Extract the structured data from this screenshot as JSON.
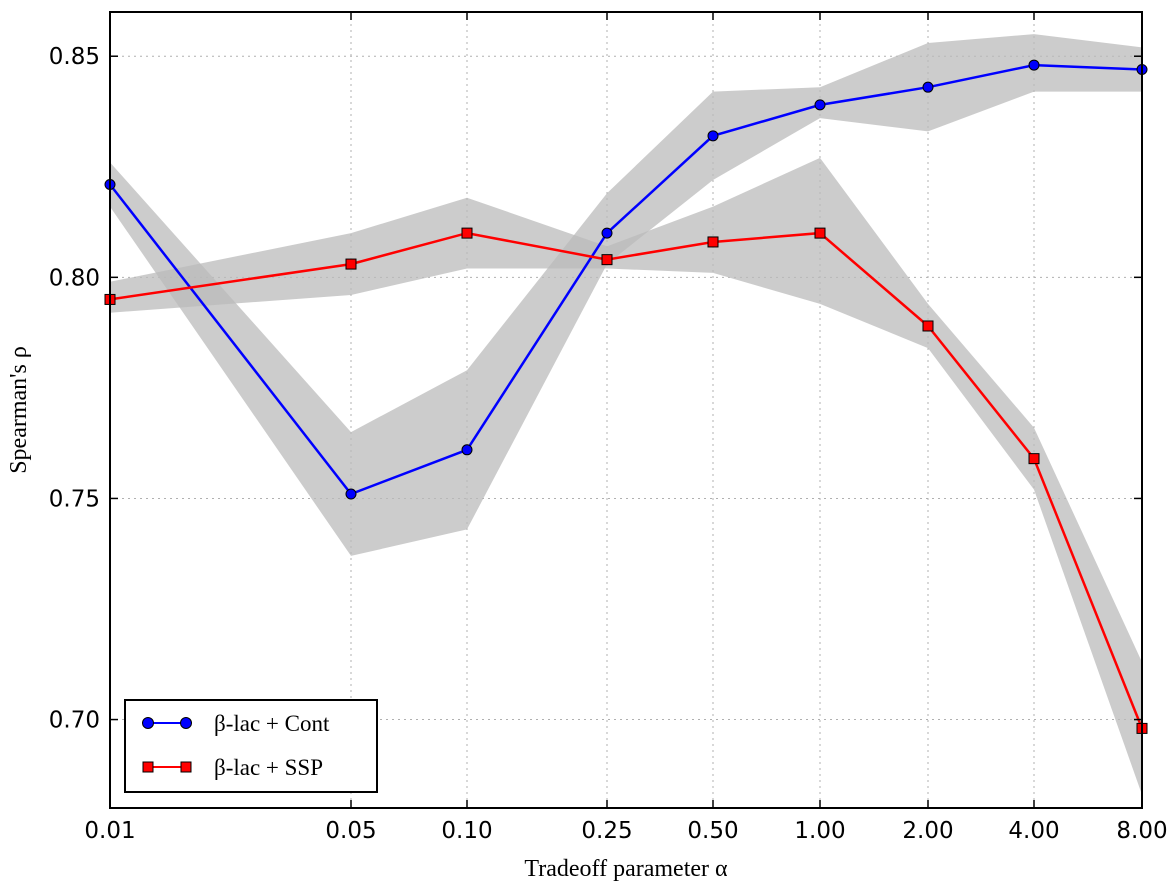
{
  "chart_data": {
    "type": "line",
    "title": "",
    "xlabel": "Tradeoff parameter α",
    "ylabel": "Spearman's ρ",
    "x_tick_labels": [
      "0.01",
      "0.05",
      "0.10",
      "0.25",
      "0.50",
      "1.00",
      "2.00",
      "4.00",
      "8.00"
    ],
    "x_scale": "categorical",
    "ylim": [
      0.68,
      0.86
    ],
    "y_ticks": [
      0.7,
      0.75,
      0.8,
      0.85
    ],
    "y_tick_labels": [
      "0.70",
      "0.75",
      "0.80",
      "0.85"
    ],
    "grid": true,
    "legend_position": "bottom-left",
    "series": [
      {
        "name": "β-lac + Cont",
        "color": "#0000ff",
        "marker": "circle",
        "values": [
          0.821,
          0.751,
          0.761,
          0.81,
          0.832,
          0.839,
          0.843,
          0.848,
          0.847
        ],
        "band_lower": [
          0.816,
          0.737,
          0.743,
          0.803,
          0.822,
          0.836,
          0.833,
          0.842,
          0.842
        ],
        "band_upper": [
          0.826,
          0.765,
          0.779,
          0.819,
          0.842,
          0.843,
          0.853,
          0.855,
          0.852
        ]
      },
      {
        "name": "β-lac + SSP",
        "color": "#ff0000",
        "marker": "square",
        "values": [
          0.795,
          0.803,
          0.81,
          0.804,
          0.808,
          0.81,
          0.789,
          0.759,
          0.698
        ],
        "band_lower": [
          0.792,
          0.796,
          0.802,
          0.802,
          0.801,
          0.794,
          0.784,
          0.752,
          0.683
        ],
        "band_upper": [
          0.799,
          0.81,
          0.818,
          0.807,
          0.816,
          0.827,
          0.794,
          0.766,
          0.713
        ]
      }
    ],
    "band_color": "#bbbbbb"
  }
}
